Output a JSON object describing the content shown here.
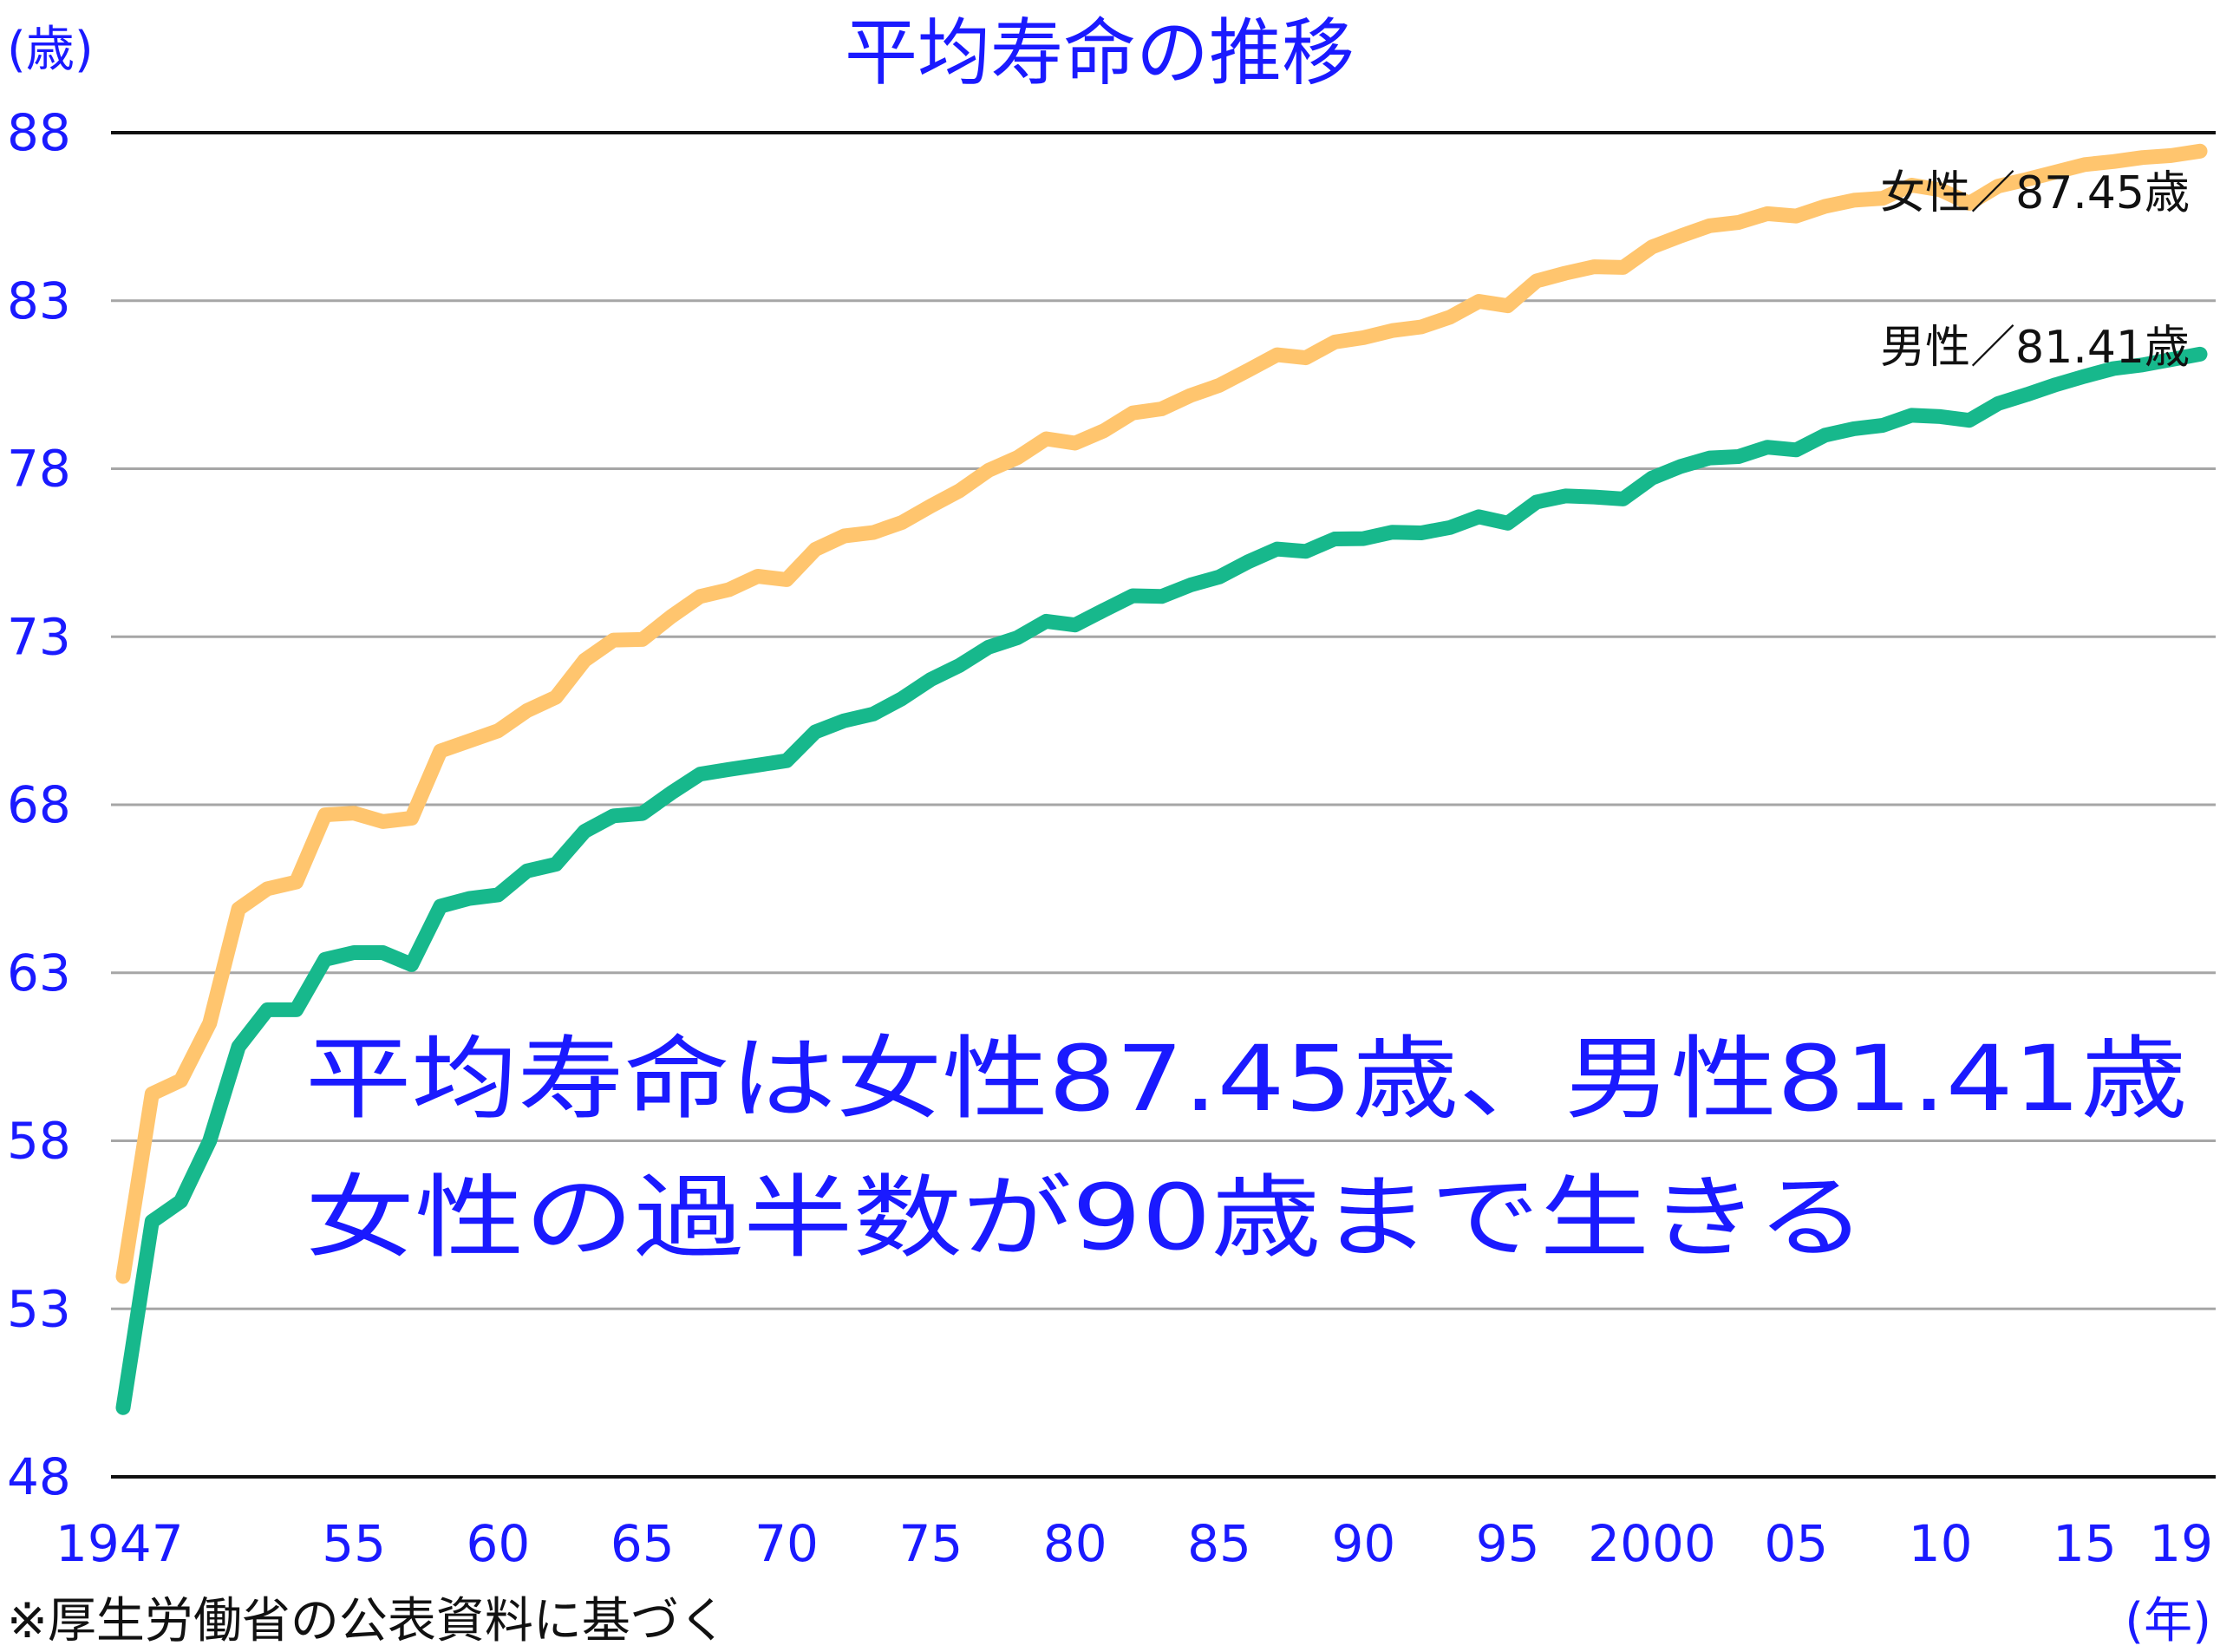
{
  "chart_data": {
    "type": "line",
    "title": "平均寿命の推移",
    "ylabel": "(歳)",
    "xlabel": "(年)",
    "ylim": [
      48,
      88
    ],
    "yticks": [
      "48",
      "53",
      "58",
      "63",
      "68",
      "73",
      "78",
      "83",
      "88"
    ],
    "xlim": [
      1947,
      2019
    ],
    "x_tick_labels": [
      {
        "x": 1947,
        "label": "1947"
      },
      {
        "x": 1955,
        "label": "55"
      },
      {
        "x": 1960,
        "label": "60"
      },
      {
        "x": 1965,
        "label": "65"
      },
      {
        "x": 1970,
        "label": "70"
      },
      {
        "x": 1975,
        "label": "75"
      },
      {
        "x": 1980,
        "label": "80"
      },
      {
        "x": 1985,
        "label": "85"
      },
      {
        "x": 1990,
        "label": "90"
      },
      {
        "x": 1995,
        "label": "95"
      },
      {
        "x": 2000,
        "label": "2000"
      },
      {
        "x": 2005,
        "label": "05"
      },
      {
        "x": 2010,
        "label": "10"
      },
      {
        "x": 2015,
        "label": "15"
      },
      {
        "x": 2019,
        "label": "19"
      }
    ],
    "x": [
      1947,
      1948,
      1949,
      1950,
      1951,
      1952,
      1953,
      1954,
      1955,
      1956,
      1957,
      1958,
      1959,
      1960,
      1961,
      1962,
      1963,
      1964,
      1965,
      1966,
      1967,
      1968,
      1969,
      1970,
      1971,
      1972,
      1973,
      1974,
      1975,
      1976,
      1977,
      1978,
      1979,
      1980,
      1981,
      1982,
      1983,
      1984,
      1985,
      1986,
      1987,
      1988,
      1989,
      1990,
      1991,
      1992,
      1993,
      1994,
      1995,
      1996,
      1997,
      1998,
      1999,
      2000,
      2001,
      2002,
      2003,
      2004,
      2005,
      2006,
      2007,
      2008,
      2009,
      2010,
      2011,
      2012,
      2013,
      2014,
      2015,
      2016,
      2017,
      2018,
      2019
    ],
    "series": [
      {
        "name": "女性",
        "color": "#ffc56e",
        "end_label": "女性／87.45歳",
        "values": [
          53.96,
          59.4,
          59.8,
          61.5,
          64.9,
          65.5,
          65.7,
          67.7,
          67.75,
          67.5,
          67.6,
          69.6,
          69.9,
          70.2,
          70.8,
          71.2,
          72.3,
          72.9,
          72.92,
          73.6,
          74.2,
          74.4,
          74.8,
          74.7,
          75.6,
          76.0,
          76.1,
          76.4,
          76.89,
          77.35,
          77.95,
          78.33,
          78.89,
          78.76,
          79.13,
          79.66,
          79.78,
          80.18,
          80.48,
          80.93,
          81.39,
          81.3,
          81.77,
          81.9,
          82.11,
          82.22,
          82.51,
          82.98,
          82.85,
          83.59,
          83.82,
          84.01,
          83.99,
          84.6,
          84.93,
          85.23,
          85.33,
          85.59,
          85.52,
          85.81,
          85.99,
          86.05,
          86.44,
          86.3,
          85.9,
          86.41,
          86.61,
          86.83,
          87.05,
          87.14,
          87.26,
          87.32,
          87.45
        ],
        "label": {
          "text": "女性",
          "value": "87.45",
          "unit": "歳"
        }
      },
      {
        "name": "男性",
        "color": "#17b88c",
        "end_label": "男性／81.41歳",
        "values": [
          50.06,
          55.6,
          56.2,
          58.0,
          60.8,
          61.9,
          61.9,
          63.4,
          63.6,
          63.6,
          63.24,
          64.98,
          65.21,
          65.32,
          66.03,
          66.23,
          67.21,
          67.67,
          67.74,
          68.35,
          68.91,
          69.05,
          69.18,
          69.31,
          70.17,
          70.5,
          70.7,
          71.16,
          71.73,
          72.15,
          72.69,
          72.97,
          73.46,
          73.35,
          73.79,
          74.22,
          74.2,
          74.54,
          74.78,
          75.23,
          75.61,
          75.54,
          75.91,
          75.92,
          76.11,
          76.09,
          76.25,
          76.57,
          76.38,
          77.01,
          77.19,
          77.16,
          77.1,
          77.72,
          78.07,
          78.32,
          78.36,
          78.64,
          78.56,
          79.0,
          79.19,
          79.29,
          79.59,
          79.55,
          79.44,
          79.94,
          80.21,
          80.5,
          80.75,
          80.98,
          81.09,
          81.25,
          81.41
        ],
        "label": {
          "text": "男性",
          "value": "81.41",
          "unit": "歳"
        }
      }
    ]
  },
  "annotation": {
    "line1": "平均寿命は女性87.45歳、男性81.41歳",
    "line2": "女性の過半数が90歳まで生きる"
  },
  "source_note": "※厚生労働省の公表資料に基づく",
  "colors": {
    "accent_text": "#1a1aff",
    "grid": "#a6a6a6",
    "axis": "#111111"
  }
}
